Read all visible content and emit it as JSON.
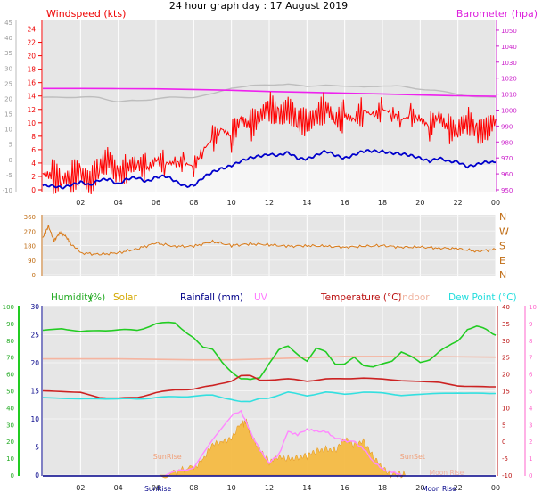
{
  "page": {
    "title": "24 hour graph day : 17 August 2019"
  },
  "colors": {
    "wind": "#ff0000",
    "wind_avg": "#0000cc",
    "baro": "#ee22ee",
    "baro_shadow": "#bdbdbd",
    "direction": "#d97a18",
    "humidity": "#22cc22",
    "solar": "#f5bb44",
    "rainfall": "#000088",
    "uv": "#ff88ff",
    "temperature": "#cc2222",
    "indoor": "#f5b4a0",
    "dewpoint": "#33e0e0",
    "plot_bg": "#e6e6e6"
  },
  "chart_data": [
    {
      "type": "line",
      "panel": "wind-barometer",
      "legend": {
        "windspeed": "Windspeed (kts)",
        "barometer": "Barometer (hpa)"
      },
      "x_ticks": [
        "02",
        "04",
        "06",
        "08",
        "10",
        "12",
        "14",
        "16",
        "18",
        "20",
        "22",
        "00"
      ],
      "xlim": [
        0,
        24
      ],
      "left_ticks": [
        "24",
        "22",
        "20",
        "18",
        "16",
        "14",
        "12",
        "10",
        "8",
        "6",
        "4",
        "2",
        "0"
      ],
      "ylim_wind": [
        0,
        25
      ],
      "right_ticks": [
        "1050",
        "1040",
        "1030",
        "1020",
        "1010",
        "1000",
        "990",
        "980",
        "970",
        "960",
        "950"
      ],
      "outer_left_ticks": [
        "45",
        "40",
        "35",
        "30",
        "25",
        "20",
        "15",
        "10",
        "5",
        "0",
        "-5",
        "-10"
      ],
      "ylim_baro": [
        950,
        1055
      ],
      "series": [
        {
          "name": "Windspeed (kts)",
          "key": "gust",
          "x": [
            0,
            0.5,
            1,
            1.5,
            2,
            2.5,
            3,
            3.5,
            4,
            4.5,
            5,
            5.5,
            6,
            6.5,
            7,
            7.5,
            8,
            8.5,
            9,
            9.5,
            10,
            10.5,
            11,
            11.5,
            12,
            12.5,
            13,
            13.5,
            14,
            14.5,
            15,
            15.5,
            16,
            16.5,
            17,
            17.5,
            18,
            18.5,
            19,
            19.5,
            20,
            20.5,
            21,
            21.5,
            22,
            22.5,
            23,
            23.5,
            24
          ],
          "values": [
            2.5,
            2,
            1.5,
            2,
            2.5,
            1,
            3.5,
            4.5,
            2,
            3.5,
            4,
            3,
            4.5,
            4,
            4,
            4,
            3.5,
            6,
            7.5,
            9,
            8,
            10.5,
            9.5,
            11,
            12.5,
            11,
            12,
            10.5,
            10,
            11,
            12.5,
            10.5,
            11,
            10.5,
            12,
            11,
            12,
            11.5,
            10.5,
            11,
            10.5,
            9.5,
            11,
            9,
            9,
            10.5,
            8.5,
            9,
            10.5
          ]
        },
        {
          "name": "Average wind",
          "key": "avg",
          "x": [
            0,
            0.5,
            1,
            1.5,
            2,
            2.5,
            3,
            3.5,
            4,
            4.5,
            5,
            5.5,
            6,
            6.5,
            7,
            7.5,
            8,
            8.5,
            9,
            9.5,
            10,
            10.5,
            11,
            11.5,
            12,
            12.5,
            13,
            13.5,
            14,
            14.5,
            15,
            15.5,
            16,
            16.5,
            17,
            17.5,
            18,
            18.5,
            19,
            19.5,
            20,
            20.5,
            21,
            21.5,
            22,
            22.5,
            23,
            23.5,
            24
          ],
          "values": [
            0.6,
            0.4,
            0.3,
            0.9,
            1.2,
            0.5,
            1.4,
            1.8,
            0.9,
            1.5,
            1.7,
            1.4,
            2,
            1.9,
            1.2,
            0.7,
            0.8,
            1.7,
            2.5,
            3.3,
            3.8,
            4.2,
            4.6,
            5.1,
            5.5,
            5.1,
            5.4,
            4.7,
            4.8,
            5.2,
            5.6,
            5.1,
            4.9,
            5.3,
            5.6,
            5.7,
            5.9,
            5.6,
            5.2,
            5,
            4.9,
            4.4,
            4.6,
            4.1,
            4.3,
            3.6,
            3.7,
            4,
            4.1
          ]
        },
        {
          "name": "Barometer (hpa)",
          "key": "baro",
          "x": [
            0,
            2,
            4,
            6,
            8,
            10,
            12,
            14,
            16,
            18,
            20,
            22,
            24
          ],
          "values": [
            1013.5,
            1013.5,
            1013.4,
            1013.3,
            1012.9,
            1012.4,
            1011.6,
            1011.1,
            1010.6,
            1010.1,
            1009.4,
            1008.9,
            1008.6
          ]
        },
        {
          "name": "Barometer trace (grey)",
          "key": "baro2",
          "x": [
            0,
            1,
            2,
            3,
            4,
            5,
            6,
            7,
            8,
            9,
            10,
            11,
            12,
            13,
            14,
            15,
            16,
            17,
            18,
            19,
            20,
            21,
            22,
            23,
            24
          ],
          "values": [
            1008,
            1008,
            1008,
            1008,
            1005,
            1006,
            1007,
            1008,
            1008,
            1010,
            1014,
            1015,
            1016,
            1016,
            1015,
            1015.5,
            1015,
            1014.5,
            1015,
            1015,
            1013,
            1012,
            1010,
            1008,
            1008
          ]
        }
      ]
    },
    {
      "type": "line",
      "panel": "wind-direction",
      "x_ticks": [
        "02",
        "04",
        "06",
        "08",
        "10",
        "12",
        "14",
        "16",
        "18",
        "20",
        "22",
        "00"
      ],
      "xlim": [
        0,
        24
      ],
      "left_ticks": [
        "360",
        "270",
        "180",
        "90",
        "0"
      ],
      "right_ticks": [
        "N",
        "W",
        "S",
        "E",
        "N"
      ],
      "ylim": [
        0,
        360
      ],
      "series": [
        {
          "name": "Wind direction",
          "key": "dir",
          "x": [
            0,
            0.3,
            0.6,
            0.9,
            1.2,
            1.5,
            2,
            3,
            4,
            5,
            6,
            7,
            8,
            9,
            10,
            11,
            12,
            13,
            14,
            15,
            16,
            17,
            18,
            19,
            20,
            21,
            22,
            23,
            24
          ],
          "values": [
            230,
            300,
            210,
            260,
            240,
            190,
            135,
            125,
            135,
            160,
            195,
            175,
            175,
            205,
            180,
            190,
            185,
            175,
            180,
            175,
            170,
            175,
            180,
            170,
            170,
            165,
            160,
            145,
            155
          ]
        }
      ]
    },
    {
      "type": "line",
      "panel": "humidity-temperature",
      "legend": {
        "humidity": "Humidity",
        "humidity_unit": "(%)",
        "solar": "Solar",
        "rainfall": "Rainfall (mm)",
        "uv": "UV",
        "temperature": "Temperature (°C)",
        "indoor": "Indoor",
        "dewpoint": "Dew Point (°C)"
      },
      "annotations": [
        "SunRise",
        "SunSet",
        "Moon Rise",
        "SunRise",
        "Moon Rise"
      ],
      "x_ticks": [
        "02",
        "04",
        "06",
        "08",
        "10",
        "12",
        "14",
        "16",
        "18",
        "20",
        "22",
        "00"
      ],
      "xlim": [
        0,
        24
      ],
      "humidity_ticks": [
        "100",
        "90",
        "80",
        "70",
        "60",
        "50",
        "40",
        "30",
        "20",
        "10",
        "0"
      ],
      "ylim_humidity": [
        0,
        100
      ],
      "rain_ticks": [
        "30",
        "25",
        "20",
        "15",
        "10",
        "5",
        "0"
      ],
      "ylim_rain": [
        0,
        30
      ],
      "temp_ticks": [
        "40",
        "35",
        "30",
        "25",
        "20",
        "15",
        "10",
        "5",
        "0",
        "-5",
        "-10"
      ],
      "ylim_temp": [
        -10,
        40
      ],
      "uv_ticks": [
        "10",
        "9",
        "8",
        "7",
        "6",
        "5",
        "4",
        "3",
        "2",
        "1",
        "0"
      ],
      "ylim_uv": [
        0,
        10
      ],
      "series": [
        {
          "name": "Humidity",
          "key": "hum",
          "x": [
            0,
            1,
            2,
            3,
            4,
            5,
            6,
            7,
            8,
            8.5,
            9,
            9.5,
            10,
            10.5,
            11,
            11.5,
            12,
            12.5,
            13,
            13.5,
            14,
            14.5,
            15,
            15.5,
            16,
            16.5,
            17,
            17.5,
            18,
            18.5,
            19,
            19.5,
            20,
            20.5,
            21,
            21.5,
            22,
            22.5,
            23,
            23.5,
            24
          ],
          "values": [
            86,
            87,
            85,
            86,
            86,
            86,
            90,
            90,
            82,
            76,
            74,
            67,
            62,
            57,
            56,
            58,
            67,
            74,
            76,
            72,
            68,
            75,
            73,
            66,
            66,
            70,
            65,
            64,
            66,
            68,
            73,
            70,
            67,
            69,
            73,
            76,
            80,
            87,
            88,
            86,
            83
          ]
        },
        {
          "name": "Temperature (°C)",
          "key": "temp",
          "x": [
            0,
            1,
            2,
            3,
            4,
            5,
            6,
            7,
            8,
            9,
            10,
            10.5,
            11,
            11.5,
            12,
            13,
            14,
            15,
            16,
            17,
            18,
            19,
            20,
            21,
            22,
            23,
            24
          ],
          "values": [
            15,
            14.8,
            14.5,
            13,
            12.8,
            13,
            14.5,
            15.2,
            15.6,
            16.5,
            18,
            19.5,
            19.4,
            18.2,
            18.3,
            18.5,
            17.9,
            18.5,
            18.6,
            18.8,
            18.5,
            18,
            17.8,
            17.5,
            16.5,
            16.2,
            16.2
          ]
        },
        {
          "name": "Indoor",
          "key": "indoor",
          "x": [
            0,
            4,
            8,
            10,
            12,
            16,
            20,
            24
          ],
          "values": [
            24.5,
            24.5,
            24.2,
            24.2,
            24.5,
            25.2,
            25.2,
            25
          ]
        },
        {
          "name": "Dew Point (°C)",
          "key": "dew",
          "x": [
            0,
            1,
            2,
            3,
            4,
            5,
            6,
            7,
            8,
            9,
            10,
            10.5,
            11,
            11.5,
            12,
            13,
            14,
            15,
            16,
            17,
            18,
            19,
            20,
            21,
            22,
            23,
            24
          ],
          "values": [
            13,
            12.8,
            12.6,
            12.7,
            12.6,
            12.6,
            13,
            13.2,
            13.5,
            13.6,
            12.6,
            11.8,
            11.6,
            12.8,
            13,
            14.5,
            13.6,
            14.6,
            14,
            14.6,
            14.4,
            13.6,
            14,
            14.2,
            14.4,
            14.2,
            14.2
          ]
        },
        {
          "name": "Solar",
          "key": "solar",
          "x": [
            6.2,
            7,
            8,
            8.5,
            9,
            9.5,
            10,
            10.5,
            10.8,
            11,
            11.5,
            12,
            12.5,
            13,
            13.5,
            14,
            14.5,
            15,
            15.5,
            16,
            16.5,
            17,
            17.5,
            18,
            18.5,
            19.2
          ],
          "values": [
            0,
            0.5,
            1.5,
            3,
            5,
            6,
            7,
            9,
            9.5,
            7,
            5,
            2.5,
            2.8,
            3,
            3.5,
            3.2,
            4,
            5,
            4.5,
            6,
            5.5,
            6.5,
            3,
            1,
            0.3,
            0
          ]
        },
        {
          "name": "UV",
          "key": "uv",
          "x": [
            6.5,
            8,
            9,
            10,
            10.5,
            11,
            11.5,
            12,
            12.5,
            13,
            13.5,
            14,
            14.5,
            15,
            15.5,
            16,
            16.5,
            17,
            17.5,
            18,
            18.5,
            19
          ],
          "values": [
            0,
            0.5,
            2,
            3.6,
            3.8,
            2.5,
            1.5,
            0.8,
            1.2,
            2.5,
            2.4,
            2.8,
            2.6,
            2.5,
            2.2,
            2.1,
            2,
            1.5,
            0.8,
            0.4,
            0.2,
            0
          ]
        }
      ]
    }
  ]
}
